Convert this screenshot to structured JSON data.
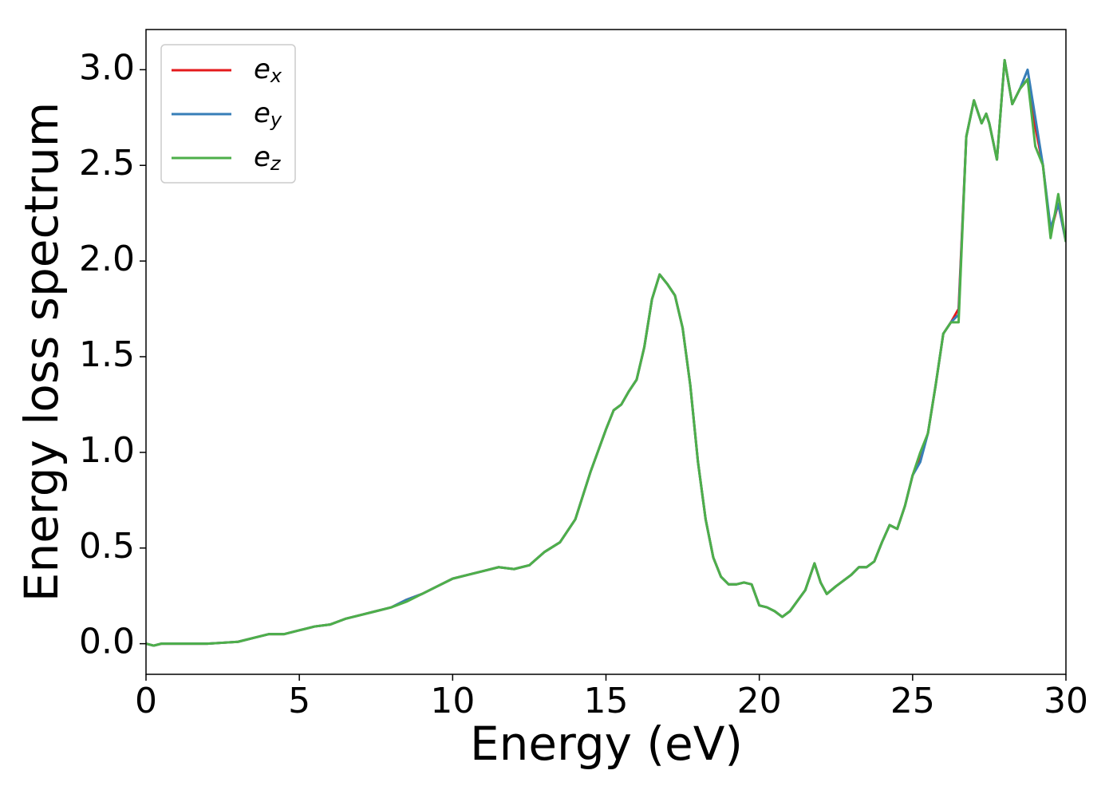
{
  "chart_data": {
    "type": "line",
    "xlabel": "Energy (eV)",
    "ylabel": "Energy loss spectrum",
    "x": [
      0,
      0.25,
      0.5,
      1,
      1.5,
      2,
      2.5,
      3,
      3.5,
      4,
      4.5,
      5,
      5.5,
      6,
      6.5,
      7,
      7.5,
      8,
      8.5,
      9,
      9.5,
      10,
      10.5,
      11,
      11.5,
      12,
      12.5,
      13,
      13.5,
      14,
      14.5,
      15,
      15.25,
      15.5,
      15.75,
      16,
      16.25,
      16.5,
      16.75,
      17,
      17.25,
      17.5,
      17.75,
      18,
      18.25,
      18.5,
      18.75,
      19,
      19.25,
      19.5,
      19.75,
      20,
      20.25,
      20.5,
      20.75,
      21,
      21.5,
      21.8,
      22,
      22.2,
      22.5,
      23,
      23.25,
      23.5,
      23.75,
      24,
      24.25,
      24.5,
      24.75,
      25,
      25.25,
      25.5,
      25.75,
      26,
      26.25,
      26.5,
      26.75,
      27,
      27.25,
      27.4,
      27.5,
      27.75,
      28,
      28.25,
      28.5,
      28.75,
      29,
      29.25,
      29.5,
      29.75,
      30
    ],
    "series": [
      {
        "name": "ex",
        "color": "#e41a1c",
        "values": [
          0,
          -0.01,
          0,
          0,
          0,
          0,
          0.005,
          0.01,
          0.03,
          0.05,
          0.05,
          0.07,
          0.09,
          0.1,
          0.13,
          0.15,
          0.17,
          0.19,
          0.23,
          0.26,
          0.3,
          0.34,
          0.36,
          0.38,
          0.4,
          0.39,
          0.41,
          0.48,
          0.53,
          0.65,
          0.9,
          1.12,
          1.22,
          1.25,
          1.32,
          1.38,
          1.55,
          1.8,
          1.93,
          1.88,
          1.82,
          1.65,
          1.35,
          0.95,
          0.65,
          0.45,
          0.35,
          0.31,
          0.31,
          0.32,
          0.31,
          0.2,
          0.19,
          0.17,
          0.14,
          0.17,
          0.28,
          0.42,
          0.32,
          0.26,
          0.3,
          0.36,
          0.4,
          0.4,
          0.43,
          0.53,
          0.62,
          0.6,
          0.72,
          0.88,
          0.98,
          1.1,
          1.35,
          1.62,
          1.68,
          1.75,
          2.65,
          2.84,
          2.72,
          2.77,
          2.72,
          2.53,
          3.05,
          2.82,
          2.9,
          2.95,
          2.7,
          2.5,
          2.15,
          2.3,
          2.1
        ]
      },
      {
        "name": "ey",
        "color": "#377eb8",
        "values": [
          0,
          -0.01,
          0,
          0,
          0,
          0,
          0.005,
          0.01,
          0.03,
          0.05,
          0.05,
          0.07,
          0.09,
          0.1,
          0.13,
          0.15,
          0.17,
          0.19,
          0.23,
          0.26,
          0.3,
          0.34,
          0.36,
          0.38,
          0.4,
          0.39,
          0.41,
          0.48,
          0.53,
          0.65,
          0.9,
          1.12,
          1.22,
          1.25,
          1.32,
          1.38,
          1.55,
          1.8,
          1.93,
          1.88,
          1.82,
          1.65,
          1.35,
          0.95,
          0.65,
          0.45,
          0.35,
          0.31,
          0.31,
          0.32,
          0.31,
          0.2,
          0.19,
          0.17,
          0.14,
          0.17,
          0.28,
          0.42,
          0.32,
          0.26,
          0.3,
          0.36,
          0.4,
          0.4,
          0.43,
          0.53,
          0.62,
          0.6,
          0.72,
          0.88,
          0.95,
          1.1,
          1.35,
          1.62,
          1.68,
          1.72,
          2.65,
          2.84,
          2.72,
          2.77,
          2.72,
          2.53,
          3.05,
          2.82,
          2.9,
          3.0,
          2.75,
          2.5,
          2.17,
          2.3,
          2.1
        ]
      },
      {
        "name": "ez",
        "color": "#4daf4a",
        "values": [
          0,
          -0.01,
          0,
          0,
          0,
          0,
          0.005,
          0.01,
          0.03,
          0.05,
          0.05,
          0.07,
          0.09,
          0.1,
          0.13,
          0.15,
          0.17,
          0.19,
          0.22,
          0.26,
          0.3,
          0.34,
          0.36,
          0.38,
          0.4,
          0.39,
          0.41,
          0.48,
          0.53,
          0.65,
          0.9,
          1.12,
          1.22,
          1.25,
          1.32,
          1.38,
          1.55,
          1.8,
          1.93,
          1.88,
          1.82,
          1.65,
          1.35,
          0.95,
          0.65,
          0.45,
          0.35,
          0.31,
          0.31,
          0.32,
          0.31,
          0.2,
          0.19,
          0.17,
          0.14,
          0.17,
          0.28,
          0.42,
          0.32,
          0.26,
          0.3,
          0.36,
          0.4,
          0.4,
          0.43,
          0.53,
          0.62,
          0.6,
          0.72,
          0.88,
          1.0,
          1.1,
          1.35,
          1.62,
          1.68,
          1.68,
          2.65,
          2.84,
          2.72,
          2.77,
          2.72,
          2.53,
          3.05,
          2.82,
          2.9,
          2.95,
          2.6,
          2.5,
          2.12,
          2.35,
          2.1
        ]
      }
    ],
    "xlim": [
      0,
      30
    ],
    "xticks": [
      0,
      5,
      10,
      15,
      20,
      25,
      30
    ],
    "ylim": [
      -0.16,
      3.21
    ],
    "yticks": [
      {
        "value": 0,
        "label": "0.0"
      },
      {
        "value": 0.5,
        "label": "0.5"
      },
      {
        "value": 1,
        "label": "1.0"
      },
      {
        "value": 1.5,
        "label": "1.5"
      },
      {
        "value": 2,
        "label": "2.0"
      },
      {
        "value": 2.5,
        "label": "2.5"
      },
      {
        "value": 3,
        "label": "3.0"
      }
    ],
    "legend": "upper left",
    "grid": false
  }
}
